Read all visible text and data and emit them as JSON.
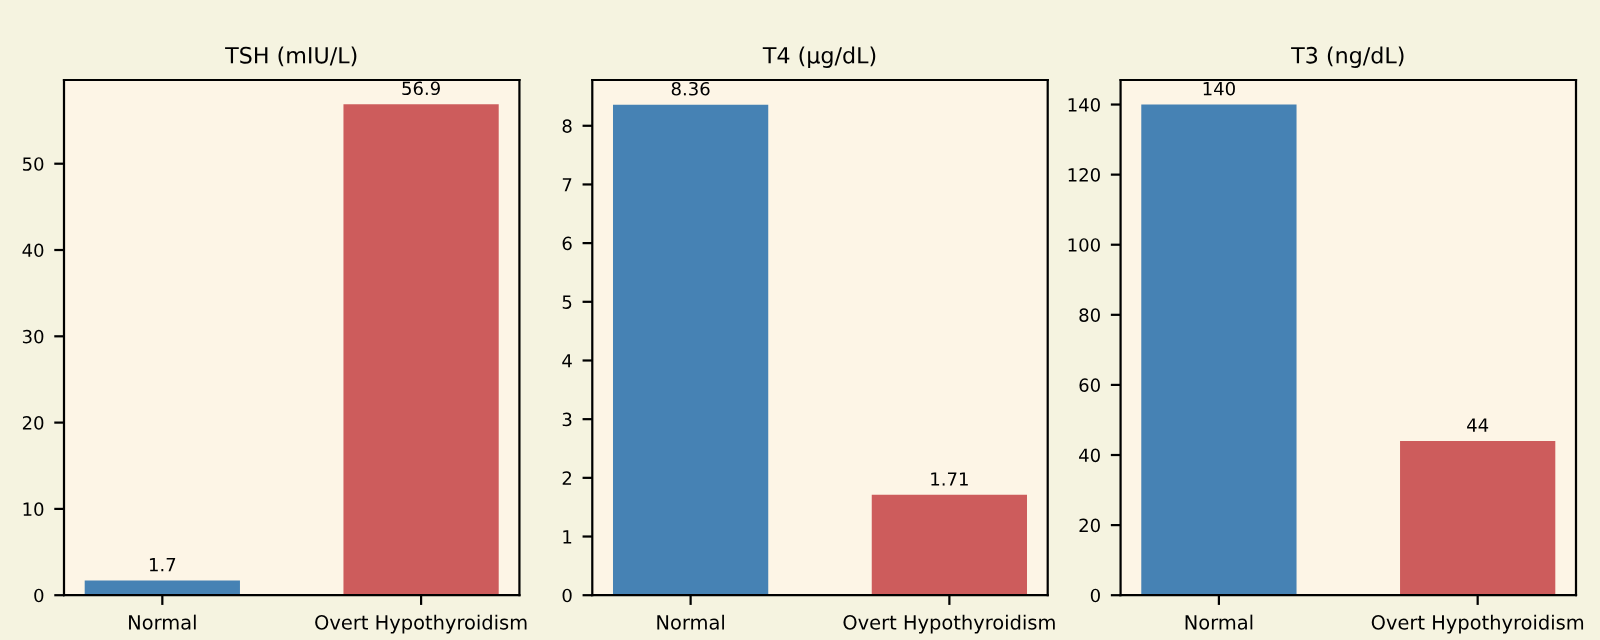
{
  "chart_data": [
    {
      "type": "bar",
      "title": "TSH (mIU/L)",
      "categories": [
        "Normal",
        "Overt Hypothyroidism"
      ],
      "values": [
        1.7,
        56.9
      ],
      "colors": [
        "#4682b4",
        "#cd5c5c"
      ],
      "ylim": [
        0,
        59.7
      ],
      "yticks": [
        0,
        10,
        20,
        30,
        40,
        50
      ],
      "data_labels": true,
      "grid": false
    },
    {
      "type": "bar",
      "title": "T4 (µg/dL)",
      "categories": [
        "Normal",
        "Overt Hypothyroidism"
      ],
      "values": [
        8.36,
        1.71
      ],
      "colors": [
        "#4682b4",
        "#cd5c5c"
      ],
      "ylim": [
        0,
        8.78
      ],
      "yticks": [
        0,
        1,
        2,
        3,
        4,
        5,
        6,
        7,
        8
      ],
      "data_labels": true,
      "grid": false
    },
    {
      "type": "bar",
      "title": "T3 (ng/dL)",
      "categories": [
        "Normal",
        "Overt Hypothyroidism"
      ],
      "values": [
        140,
        44
      ],
      "colors": [
        "#4682b4",
        "#cd5c5c"
      ],
      "ylim": [
        0,
        147
      ],
      "yticks": [
        0,
        20,
        40,
        60,
        80,
        100,
        120,
        140
      ],
      "data_labels": true,
      "grid": false
    }
  ]
}
